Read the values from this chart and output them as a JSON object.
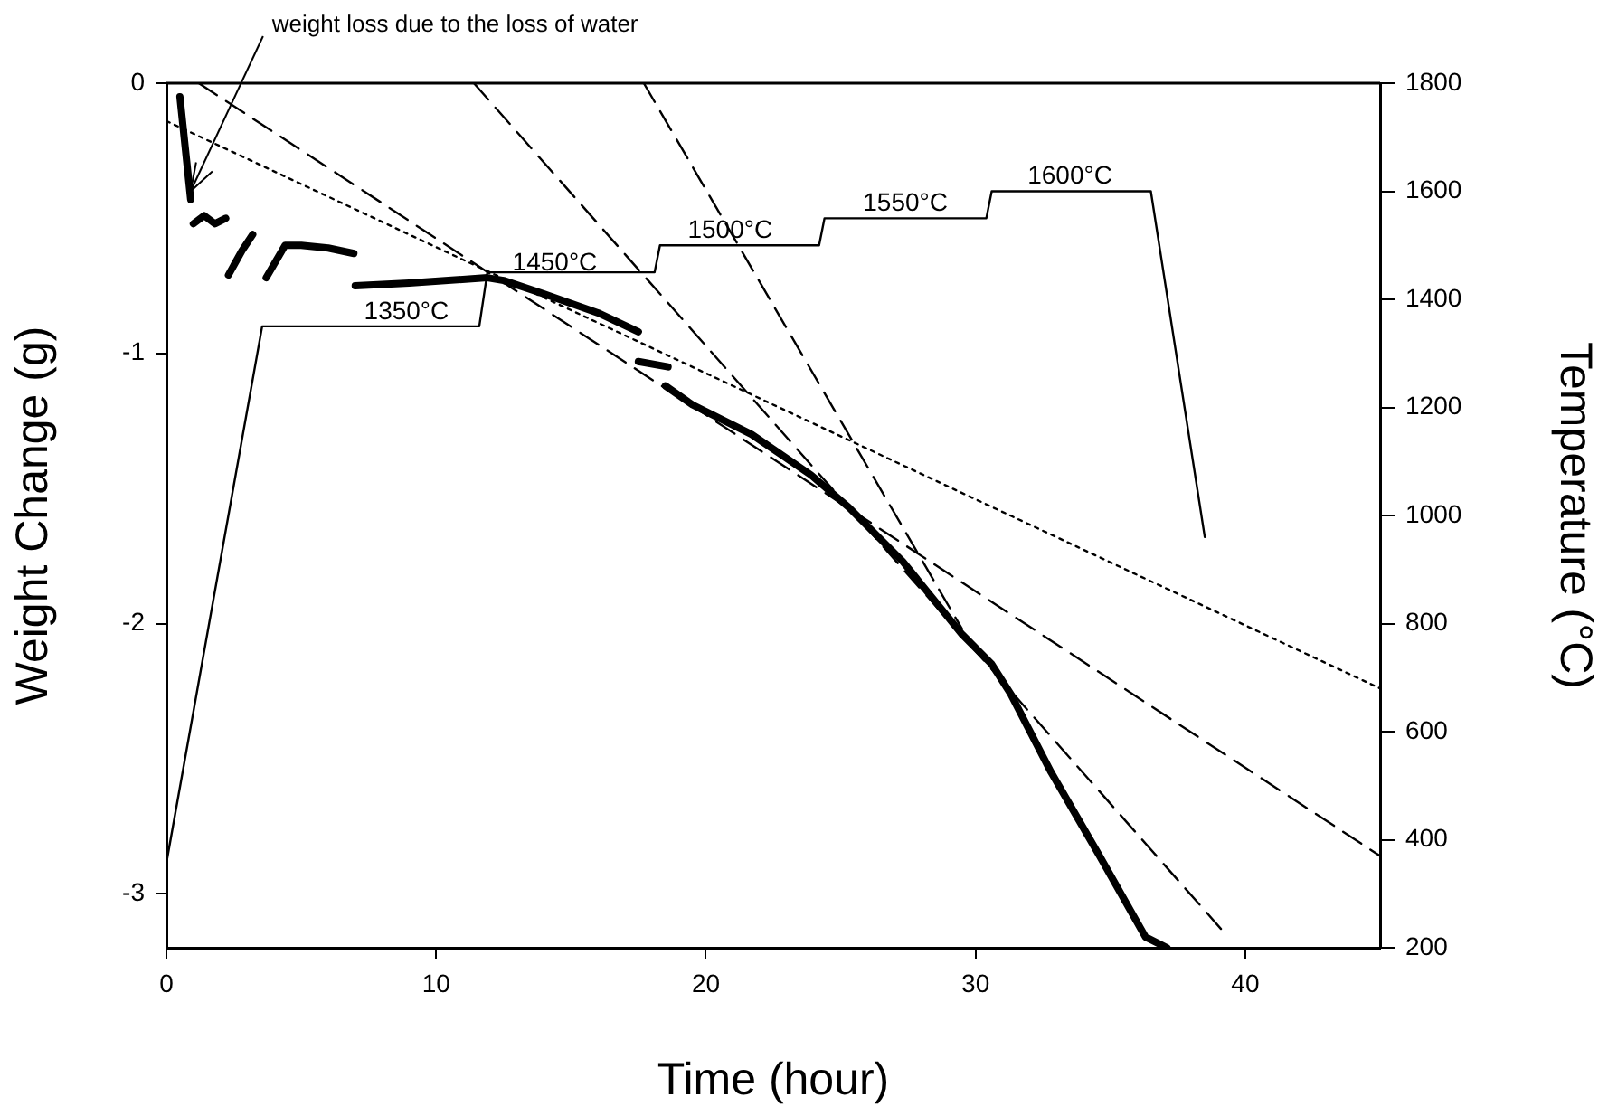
{
  "chart_data": {
    "type": "line",
    "xlabel": "Time (hour)",
    "ylabel": "Weight Change (g)",
    "y2label": "Temperature (°C)",
    "xlim": [
      0,
      45
    ],
    "xticks": [
      0,
      10,
      20,
      30,
      40
    ],
    "ylim": [
      -3.2,
      0
    ],
    "yticks": [
      0,
      -1,
      -2,
      -3
    ],
    "y2lim": [
      200,
      1800
    ],
    "y2ticks": [
      200,
      400,
      600,
      800,
      1000,
      1200,
      1400,
      1600,
      1800
    ],
    "grid": false,
    "legend": false,
    "marker": "none",
    "series": [
      {
        "color": "#000000",
        "line_style": "solid",
        "x": [
          0.5,
          0.9,
          null,
          1.0,
          1.4,
          1.8,
          2.2,
          null,
          2.3,
          2.8,
          3.2,
          null,
          3.7,
          4.4,
          5.0,
          6.0,
          6.95,
          null,
          7.0,
          9.0,
          11.9,
          12.5,
          14.0,
          16.0,
          17.5,
          null,
          17.5,
          18.6,
          null,
          18.5,
          19.5,
          21.7,
          23.9,
          25.3,
          27.3,
          29.5,
          30.6,
          31.3,
          32.8,
          34.6,
          36.3,
          37.1
        ],
        "values": [
          -0.05,
          -0.43,
          null,
          -0.52,
          -0.49,
          -0.52,
          -0.5,
          null,
          -0.71,
          -0.62,
          -0.56,
          null,
          -0.72,
          -0.6,
          -0.6,
          -0.61,
          -0.63,
          null,
          -0.75,
          -0.74,
          -0.72,
          -0.73,
          -0.78,
          -0.85,
          -0.92,
          null,
          -1.03,
          -1.05,
          null,
          -1.12,
          -1.19,
          -1.3,
          -1.45,
          -1.57,
          -1.77,
          -2.04,
          -2.15,
          -2.26,
          -2.55,
          -2.86,
          -3.16,
          -3.2
        ]
      },
      {
        "color": "#000000",
        "line_style": "solid",
        "axis": "y2",
        "x": [
          0,
          3.55,
          11.6,
          11.9,
          18.1,
          18.3,
          24.2,
          24.4,
          30.4,
          30.6,
          36.5,
          38.5
        ],
        "values": [
          357,
          1350,
          1350,
          1450,
          1450,
          1500,
          1500,
          1550,
          1550,
          1600,
          1600,
          960
        ]
      },
      {
        "type": "line",
        "color": "#000000",
        "line_style": "dashed",
        "x": [
          1.2,
          45
        ],
        "values": [
          0,
          -2.86
        ]
      },
      {
        "type": "line",
        "color": "#000000",
        "line_style": "dotted",
        "x": [
          0,
          45
        ],
        "values": [
          -0.14,
          -2.24
        ]
      },
      {
        "type": "line",
        "color": "#000000",
        "line_style": "dashed",
        "x": [
          11.4,
          39.1
        ],
        "values": [
          0,
          -3.13
        ]
      },
      {
        "type": "line",
        "color": "#000000",
        "line_style": "dashed",
        "x": [
          17.7,
          29.5
        ],
        "values": [
          0,
          -2.02
        ]
      }
    ],
    "annotations": [
      {
        "text": "weight loss due to the loss of water",
        "x": 0.9,
        "y": -0.4
      },
      {
        "text": "1350°C",
        "x": 8.9,
        "y": -0.9
      },
      {
        "text": "1450°C",
        "x": 14.4,
        "y": -0.72
      },
      {
        "text": "1500°C",
        "x": 20.9,
        "y": -0.6
      },
      {
        "text": "1550°C",
        "x": 27.4,
        "y": -0.5
      },
      {
        "text": "1600°C",
        "x": 33.5,
        "y": -0.4
      }
    ]
  }
}
